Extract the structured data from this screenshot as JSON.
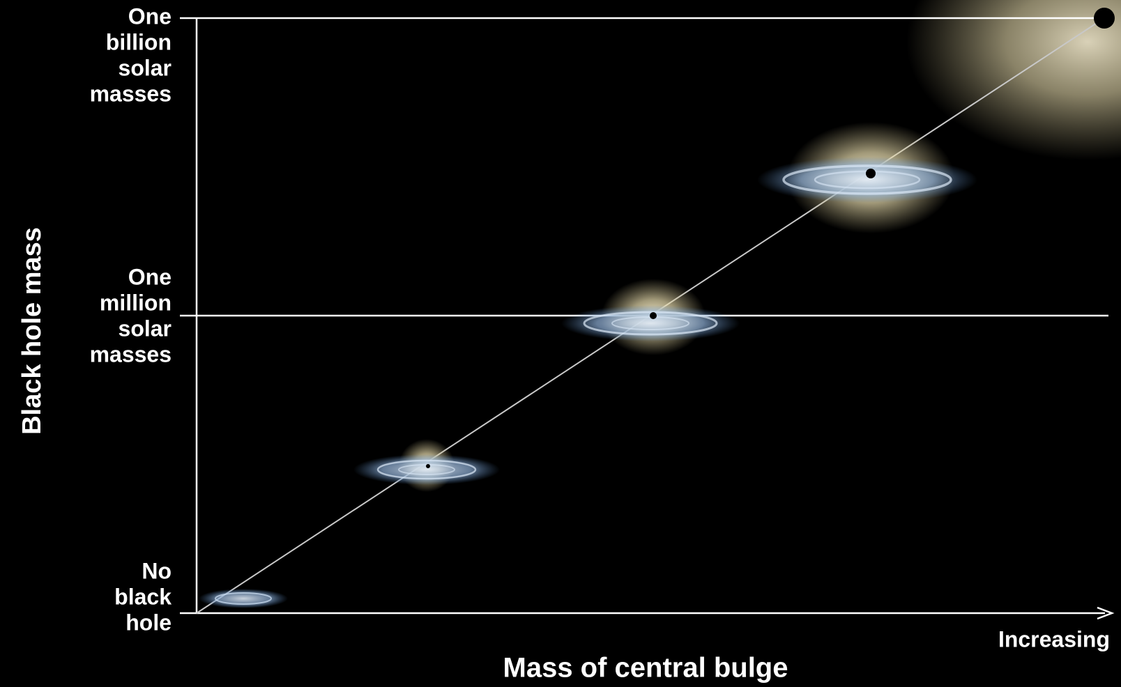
{
  "y_axis": {
    "title": "Black hole mass",
    "levels": [
      {
        "lines": [
          "One",
          "billion",
          "solar",
          "masses"
        ]
      },
      {
        "lines": [
          "One",
          "million",
          "solar",
          "masses"
        ]
      },
      {
        "lines": [
          "No",
          "black",
          "hole"
        ]
      }
    ]
  },
  "x_axis": {
    "title": "Mass of central bulge",
    "direction_label": "Increasing"
  }
}
